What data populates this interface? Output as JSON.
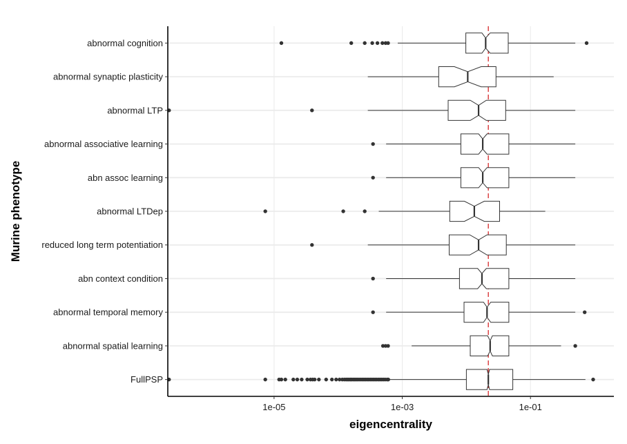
{
  "chart_data": {
    "type": "boxplot",
    "orientation": "horizontal",
    "xlabel": "eigencentrality",
    "ylabel": "Murine phenotype",
    "x_scale": "log10",
    "xlim": [
      2.2e-07,
      2.0
    ],
    "x_ticks": [
      {
        "value": 1e-05,
        "label": "1e-05"
      },
      {
        "value": 0.001,
        "label": "1e-03"
      },
      {
        "value": 0.1,
        "label": "1e-01"
      }
    ],
    "reference_line": {
      "value": 0.022,
      "style": "dashed",
      "color": "#d62728"
    },
    "grid": true,
    "notched": true,
    "categories": [
      "abnormal cognition",
      "abnormal synaptic plasticity",
      "abnormal LTP",
      "abnormal associative learning",
      "abn assoc learning",
      "abnormal LTDep",
      "reduced long term potentiation",
      "abn context condition",
      "abnormal temporal memory",
      "abnormal spatial learning",
      "FullPSP"
    ],
    "boxes": [
      {
        "whisker_low": 0.00085,
        "q1": 0.0098,
        "median": 0.02,
        "q3": 0.045,
        "whisker_high": 0.5,
        "notch_low": 0.0175,
        "notch_high": 0.0235,
        "outliers": [
          1.3e-05,
          0.00016,
          0.00026,
          0.00034,
          0.00041,
          0.00049,
          0.00055,
          0.0006,
          0.75
        ]
      },
      {
        "whisker_low": 0.00029,
        "q1": 0.0037,
        "median": 0.0105,
        "q3": 0.029,
        "whisker_high": 0.23,
        "notch_low": 0.0065,
        "notch_high": 0.017,
        "outliers": []
      },
      {
        "whisker_low": 0.00029,
        "q1": 0.0052,
        "median": 0.0155,
        "q3": 0.041,
        "whisker_high": 0.5,
        "notch_low": 0.0115,
        "notch_high": 0.0205,
        "outliers": [
          2.3e-07,
          3.9e-05
        ]
      },
      {
        "whisker_low": 0.00056,
        "q1": 0.0082,
        "median": 0.018,
        "q3": 0.046,
        "whisker_high": 0.5,
        "notch_low": 0.0155,
        "notch_high": 0.021,
        "outliers": [
          0.00035
        ]
      },
      {
        "whisker_low": 0.00056,
        "q1": 0.0082,
        "median": 0.018,
        "q3": 0.046,
        "whisker_high": 0.5,
        "notch_low": 0.0155,
        "notch_high": 0.021,
        "outliers": [
          0.00035
        ]
      },
      {
        "whisker_low": 0.00043,
        "q1": 0.0055,
        "median": 0.0133,
        "q3": 0.033,
        "whisker_high": 0.17,
        "notch_low": 0.0093,
        "notch_high": 0.019,
        "outliers": [
          7.3e-06,
          0.00012,
          0.00026
        ]
      },
      {
        "whisker_low": 0.00029,
        "q1": 0.0054,
        "median": 0.0155,
        "q3": 0.042,
        "whisker_high": 0.5,
        "notch_low": 0.0113,
        "notch_high": 0.021,
        "outliers": [
          3.9e-05
        ]
      },
      {
        "whisker_low": 0.00056,
        "q1": 0.0078,
        "median": 0.0175,
        "q3": 0.046,
        "whisker_high": 0.5,
        "notch_low": 0.015,
        "notch_high": 0.0205,
        "outliers": [
          0.00035
        ]
      },
      {
        "whisker_low": 0.00056,
        "q1": 0.0092,
        "median": 0.021,
        "q3": 0.046,
        "whisker_high": 0.5,
        "notch_low": 0.0185,
        "notch_high": 0.024,
        "outliers": [
          0.00035,
          0.7
        ]
      },
      {
        "whisker_low": 0.0014,
        "q1": 0.0115,
        "median": 0.0235,
        "q3": 0.046,
        "whisker_high": 0.3,
        "notch_low": 0.0215,
        "notch_high": 0.0255,
        "outliers": [
          0.0005,
          0.00055,
          0.0006,
          0.5
        ]
      },
      {
        "whisker_low": 0.0006,
        "q1": 0.01,
        "median": 0.022,
        "q3": 0.053,
        "whisker_high": 0.72,
        "notch_low": 0.021,
        "notch_high": 0.023,
        "outliers": [
          2.3e-07,
          7.3e-06,
          1.2e-05,
          1.3e-05,
          1.5e-05,
          2e-05,
          2.3e-05,
          2.7e-05,
          3.3e-05,
          3.7e-05,
          4e-05,
          4.3e-05,
          5e-05,
          6.5e-05,
          8e-05,
          9.3e-05,
          0.000105,
          0.000116,
          0.000125,
          0.000133,
          0.00014,
          0.000147,
          0.000155,
          0.000163,
          0.000172,
          0.000181,
          0.00019,
          0.0002,
          0.000212,
          0.000225,
          0.000238,
          0.000252,
          0.000267,
          0.000283,
          0.0003,
          0.000318,
          0.000337,
          0.000357,
          0.000378,
          0.0004,
          0.000425,
          0.00045,
          0.000478,
          0.000508,
          0.00054,
          0.00058,
          0.000605,
          0.95
        ]
      }
    ],
    "colors": {
      "box_fill": "#ffffff",
      "line": "#333333",
      "point": "#333333",
      "grid": "#ebebeb"
    }
  }
}
